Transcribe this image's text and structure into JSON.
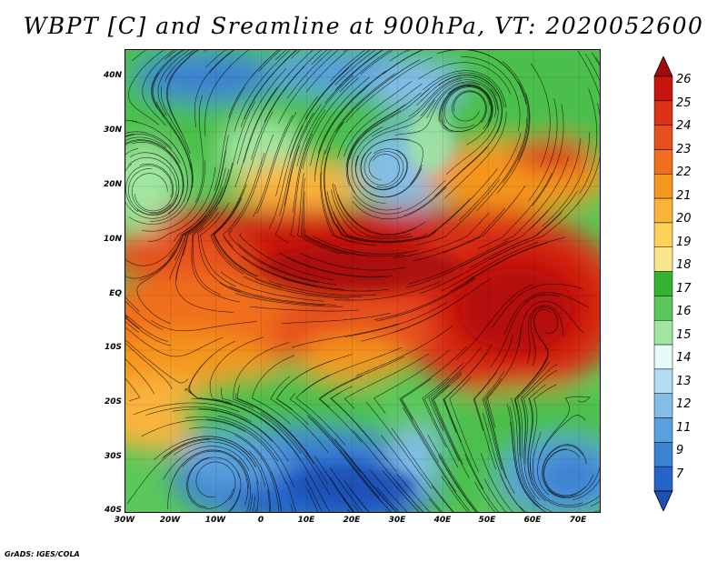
{
  "title": "WBPT [C] and Sreamline at 900hPa, VT: 2020052600",
  "footer": "GrADS: IGES/COLA",
  "map": {
    "lat_labels": [
      "40N",
      "30N",
      "20N",
      "10N",
      "EQ",
      "10S",
      "20S",
      "30S",
      "40S"
    ],
    "lon_labels": [
      "30W",
      "20W",
      "10W",
      "0",
      "10E",
      "20E",
      "30E",
      "40E",
      "50E",
      "60E",
      "70E"
    ],
    "lat_range": [
      -40,
      45
    ],
    "lon_range": [
      -30,
      75
    ]
  },
  "colorbar": {
    "labels": [
      "26",
      "25",
      "24",
      "23",
      "22",
      "21",
      "20",
      "19",
      "18",
      "17",
      "16",
      "15",
      "14",
      "13",
      "12",
      "11",
      "9",
      "7"
    ],
    "colors": [
      "#a50a0a",
      "#c8140f",
      "#dc3218",
      "#e6501e",
      "#f06e1e",
      "#f5961e",
      "#fab43c",
      "#fcd25a",
      "#fae68c",
      "#32b432",
      "#5ac85a",
      "#a0e6a0",
      "#e6fafa",
      "#b4dcf0",
      "#82bee6",
      "#5aa0dc",
      "#3c82d2",
      "#2864c8",
      "#1e50b4"
    ]
  }
}
